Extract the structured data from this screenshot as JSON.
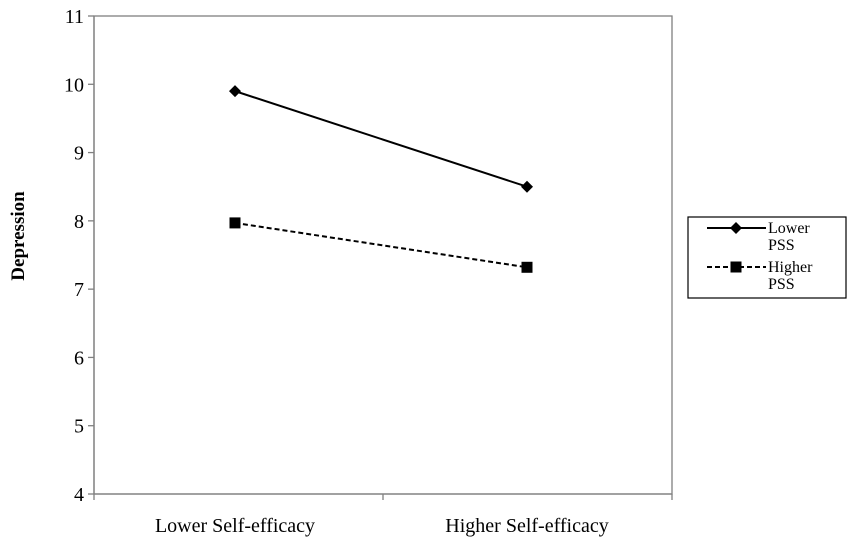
{
  "chart_data": {
    "type": "line",
    "categories": [
      "Lower Self-efficacy",
      "Higher Self-efficacy"
    ],
    "series": [
      {
        "name": "Lower PSS",
        "name_lines": [
          "Lower",
          "PSS"
        ],
        "values": [
          9.9,
          8.5
        ],
        "marker": "diamond",
        "line_style": "solid",
        "color": "#000000"
      },
      {
        "name": "Higher PSS",
        "name_lines": [
          "Higher",
          "PSS"
        ],
        "values": [
          7.97,
          7.32
        ],
        "marker": "square",
        "line_style": "dashed",
        "color": "#000000"
      }
    ],
    "title": "",
    "xlabel": "",
    "ylabel": "Depression",
    "ylim": [
      4,
      11
    ],
    "yticks": [
      4,
      5,
      6,
      7,
      8,
      9,
      10,
      11
    ],
    "grid": false,
    "legend": "right"
  }
}
